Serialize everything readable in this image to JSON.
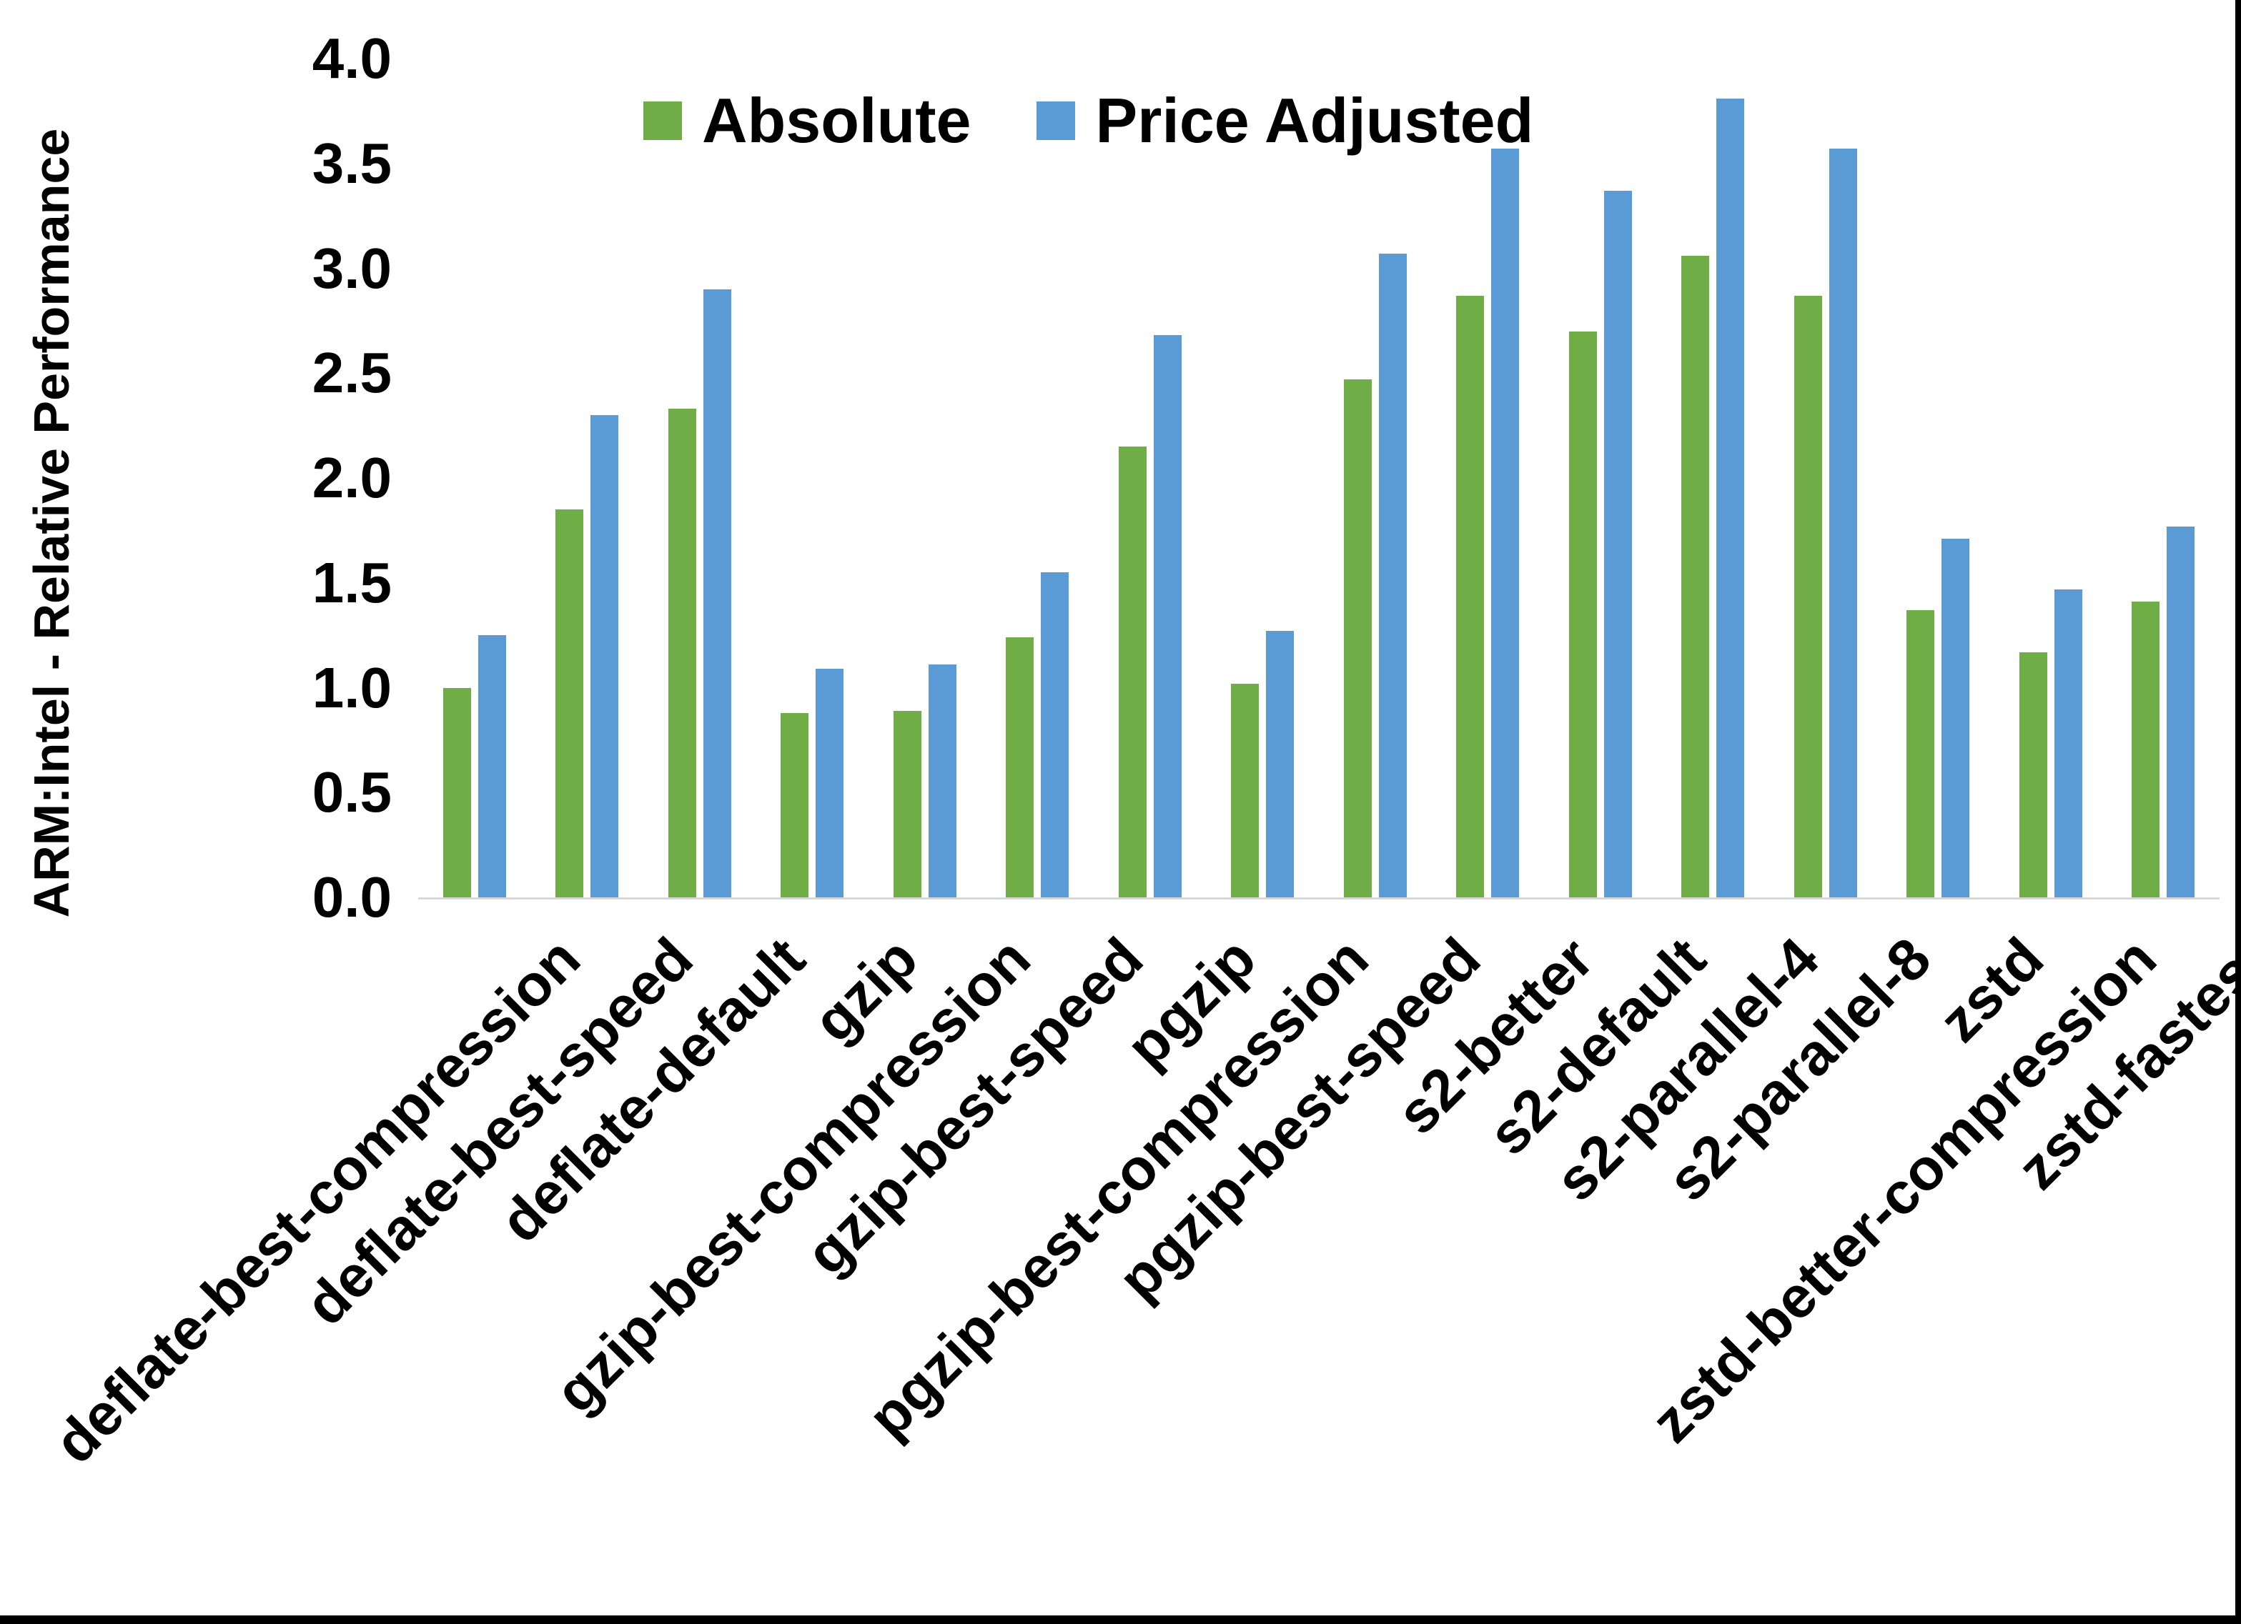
{
  "figure": {
    "background": "#FFFFFF",
    "edge_border_color": "#000000",
    "axis_line_color": "#D9D9D9",
    "text_color": "#000000"
  },
  "chart_data": {
    "type": "bar",
    "title": "",
    "ylabel": "ARM:Intel - Relative Performance",
    "xlabel": "",
    "ylim": [
      0.0,
      4.0
    ],
    "ytick_labels": [
      "4.0",
      "3.5",
      "3.0",
      "2.5",
      "2.0",
      "1.5",
      "1.0",
      "0.5",
      "0.0"
    ],
    "grid": false,
    "legend_position": "top-center",
    "legend": [
      "Absolute",
      "Price Adjusted"
    ],
    "categories": [
      "deflate-best-compression",
      "deflate-best-speed",
      "deflate-default",
      "gzip",
      "gzip-best-compression",
      "gzip-best-speed",
      "pgzip",
      "pgzip-best-compression",
      "pgzip-best-speed",
      "s2-better",
      "s2-default",
      "s2-parallel-4",
      "s2-parallel-8",
      "zstd",
      "zstd-better-compression",
      "zstd-fastest"
    ],
    "series": [
      {
        "name": "Absolute",
        "color": "#70AD47",
        "values": [
          1.0,
          1.85,
          2.33,
          0.88,
          0.89,
          1.24,
          2.15,
          1.02,
          2.47,
          2.87,
          2.7,
          3.06,
          2.87,
          1.37,
          1.17,
          1.41
        ]
      },
      {
        "name": "Price Adjusted",
        "color": "#5B9BD5",
        "values": [
          1.25,
          2.3,
          2.9,
          1.09,
          1.11,
          1.55,
          2.68,
          1.27,
          3.07,
          3.57,
          3.37,
          3.81,
          3.57,
          1.71,
          1.47,
          1.77
        ]
      }
    ]
  }
}
